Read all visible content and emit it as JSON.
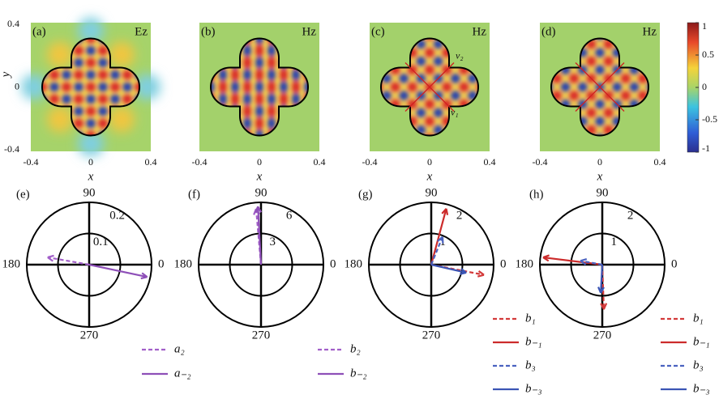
{
  "figure": {
    "maps": [
      {
        "label": "(a)",
        "field": "Ez",
        "xticks": [
          -0.4,
          0,
          0.4
        ],
        "xlabel": "x",
        "yticks": [
          0.4,
          0,
          -0.4
        ],
        "ylabel": "y"
      },
      {
        "label": "(b)",
        "field": "Hz",
        "xticks": [
          -0.4,
          0,
          0.4
        ],
        "xlabel": "x"
      },
      {
        "label": "(c)",
        "field": "Hz",
        "xticks": [
          -0.4,
          0,
          0.4
        ],
        "xlabel": "x",
        "annotations": [
          "v₂",
          "v₁"
        ]
      },
      {
        "label": "(d)",
        "field": "Hz",
        "xticks": [
          -0.4,
          0,
          0.4
        ],
        "xlabel": "x"
      }
    ],
    "colorbar": {
      "ticks": [
        1,
        0.5,
        0,
        -0.5,
        -1
      ]
    },
    "polars": [
      {
        "label": "(e)",
        "rmax": 0.2,
        "rticks": [
          0.1,
          0.2
        ],
        "angles": [
          90,
          180,
          270,
          0
        ],
        "arrows": [
          {
            "name": "a₂",
            "color": "#a25fc9",
            "dash": true,
            "r": 0.135,
            "angle": 170
          },
          {
            "name": "a₋₂",
            "color": "#8e4fb8",
            "dash": false,
            "r": 0.19,
            "angle": 348
          }
        ]
      },
      {
        "label": "(f)",
        "rmax": 6,
        "rticks": [
          3,
          6
        ],
        "angles": [
          90,
          180,
          270,
          0
        ],
        "arrows": [
          {
            "name": "b₂",
            "color": "#a25fc9",
            "dash": true,
            "r": 5.4,
            "angle": 95
          },
          {
            "name": "b₋₂",
            "color": "#8e4fb8",
            "dash": false,
            "r": 5.6,
            "angle": 93
          }
        ]
      },
      {
        "label": "(g)",
        "rmax": 2,
        "rticks": [
          1,
          2
        ],
        "angles": [
          90,
          180,
          270,
          0
        ],
        "arrows": [
          {
            "name": "b₁",
            "color": "#d33a3a",
            "dash": true,
            "r": 1.72,
            "angle": 349
          },
          {
            "name": "b₋₁",
            "color": "#cc2b2b",
            "dash": false,
            "r": 1.86,
            "angle": 75
          },
          {
            "name": "b₃",
            "color": "#4a62c0",
            "dash": true,
            "r": 0.96,
            "angle": 68
          },
          {
            "name": "b₋₃",
            "color": "#3b55b5",
            "dash": false,
            "r": 1.15,
            "angle": 347
          }
        ]
      },
      {
        "label": "(h)",
        "rmax": 2,
        "rticks": [
          1,
          2
        ],
        "angles": [
          90,
          180,
          270,
          0
        ],
        "arrows": [
          {
            "name": "b₁",
            "color": "#d33a3a",
            "dash": true,
            "r": 1.43,
            "angle": 272
          },
          {
            "name": "b₋₁",
            "color": "#cc2b2b",
            "dash": false,
            "r": 1.91,
            "angle": 173
          },
          {
            "name": "b₃",
            "color": "#4a62c0",
            "dash": true,
            "r": 0.71,
            "angle": 170
          },
          {
            "name": "b₋₃",
            "color": "#3b55b5",
            "dash": false,
            "r": 0.91,
            "angle": 267
          }
        ]
      }
    ]
  }
}
